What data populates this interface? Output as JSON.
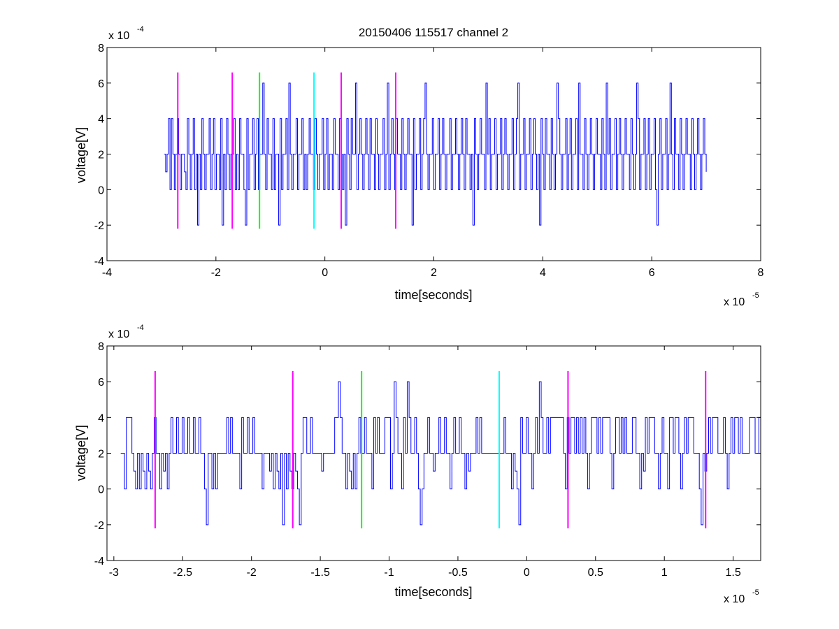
{
  "chart_data": [
    {
      "type": "line",
      "title": "20150406 115517 channel 2",
      "xlabel": "time[seconds]",
      "ylabel": "voltage[V]",
      "x_exponent_label": "x 10",
      "x_exponent_power": "-5",
      "y_exponent_label": "x 10",
      "y_exponent_power": "-4",
      "xlim": [
        -4,
        8
      ],
      "ylim": [
        -4,
        8
      ],
      "xticks": [
        -4,
        -2,
        0,
        2,
        4,
        6,
        8
      ],
      "xtick_labels": [
        "-4",
        "-2",
        "0",
        "2",
        "4",
        "6",
        "8"
      ],
      "yticks": [
        -4,
        -2,
        0,
        2,
        4,
        6,
        8
      ],
      "ytick_labels": [
        "-4",
        "-2",
        "0",
        "2",
        "4",
        "6",
        "8"
      ],
      "grid": false,
      "signal": {
        "color": "#0000ff",
        "x_start": -2.95,
        "x_end": 7.0,
        "values": [
          2,
          1,
          2,
          4,
          0,
          4,
          2,
          0,
          2,
          4,
          2,
          0,
          2,
          2,
          1,
          0,
          4,
          2,
          0,
          2,
          4,
          0,
          2,
          -2,
          2,
          0,
          4,
          2,
          0,
          2,
          2,
          4,
          0,
          2,
          4,
          0,
          2,
          2,
          0,
          4,
          -2,
          2,
          0,
          4,
          2,
          0,
          2,
          2,
          4,
          0,
          2,
          0,
          4,
          2,
          2,
          0,
          -2,
          4,
          0,
          2,
          2,
          4,
          0,
          2,
          4,
          0,
          2,
          2,
          6,
          2,
          0,
          4,
          2,
          2,
          0,
          4,
          0,
          2,
          2,
          -2,
          4,
          0,
          2,
          2,
          4,
          0,
          6,
          2,
          0,
          2,
          2,
          4,
          0,
          2,
          2,
          4,
          0,
          2,
          0,
          2,
          4,
          2,
          2,
          0,
          4,
          2,
          0,
          2,
          2,
          4,
          0,
          2,
          4,
          0,
          2,
          2,
          0,
          4,
          2,
          2,
          0,
          4,
          2,
          0,
          2,
          -2,
          4,
          2,
          0,
          4,
          2,
          2,
          6,
          0,
          2,
          4,
          2,
          0,
          2,
          4,
          2,
          0,
          4,
          2,
          2,
          0,
          4,
          2,
          0,
          2,
          2,
          4,
          0,
          2,
          6,
          0,
          2,
          4,
          2,
          0,
          4,
          2,
          2,
          0,
          4,
          2,
          0,
          2,
          4,
          2,
          2,
          -2,
          4,
          0,
          2,
          2,
          4,
          0,
          2,
          4,
          6,
          2,
          0,
          2,
          2,
          4,
          0,
          2,
          2,
          4,
          0,
          2,
          4,
          2,
          0,
          2,
          2,
          4,
          0,
          2,
          2,
          4,
          2,
          0,
          2,
          4,
          2,
          0,
          4,
          2,
          2,
          0,
          2,
          -2,
          4,
          2,
          0,
          2,
          4,
          2,
          2,
          0,
          6,
          2,
          4,
          0,
          2,
          2,
          4,
          0,
          2,
          2,
          4,
          0,
          2,
          4,
          2,
          0,
          2,
          2,
          4,
          0,
          2,
          4,
          6,
          0,
          2,
          2,
          4,
          0,
          2,
          2,
          4,
          0,
          2,
          4,
          2,
          0,
          2,
          -2,
          4,
          2,
          0,
          4,
          2,
          2,
          0,
          4,
          2,
          0,
          2,
          6,
          4,
          2,
          0,
          2,
          2,
          4,
          0,
          2,
          4,
          0,
          2,
          2,
          4,
          0,
          6,
          2,
          2,
          0,
          4,
          2,
          0,
          2,
          4,
          2,
          0,
          2,
          4,
          2,
          2,
          0,
          4,
          2,
          0,
          6,
          2,
          4,
          0,
          2,
          2,
          4,
          0,
          2,
          4,
          2,
          0,
          2,
          4,
          2,
          2,
          0,
          4,
          2,
          0,
          2,
          6,
          4,
          0,
          2,
          2,
          4,
          0,
          2,
          4,
          0,
          2,
          2,
          4,
          0,
          -2,
          2,
          4,
          0,
          2,
          2,
          4,
          0,
          2,
          6,
          2,
          0,
          4,
          2,
          2,
          0,
          4,
          2,
          0,
          2,
          4,
          2,
          2,
          0,
          4,
          2,
          0,
          2,
          4,
          2,
          0,
          2,
          4,
          2,
          1
        ]
      },
      "markers": [
        {
          "x": -2.7,
          "color": "#ff00ff",
          "y_from": -2.2,
          "y_to": 6.6
        },
        {
          "x": -1.7,
          "color": "#ff00ff",
          "y_from": -2.2,
          "y_to": 6.6
        },
        {
          "x": -1.2,
          "color": "#00ff00",
          "y_from": -2.2,
          "y_to": 6.6
        },
        {
          "x": -0.2,
          "color": "#00ffff",
          "y_from": -2.2,
          "y_to": 6.6
        },
        {
          "x": 0.3,
          "color": "#ff00ff",
          "y_from": -2.2,
          "y_to": 6.6
        },
        {
          "x": 1.3,
          "color": "#ff00ff",
          "y_from": -2.2,
          "y_to": 6.6
        }
      ]
    },
    {
      "type": "line",
      "title": "",
      "xlabel": "time[seconds]",
      "ylabel": "voltage[V]",
      "x_exponent_label": "x 10",
      "x_exponent_power": "-5",
      "y_exponent_label": "x 10",
      "y_exponent_power": "-4",
      "xlim": [
        -3.05,
        1.7
      ],
      "ylim": [
        -4,
        8
      ],
      "xticks": [
        -3,
        -2.5,
        -2,
        -1.5,
        -1,
        -0.5,
        0,
        0.5,
        1,
        1.5
      ],
      "xtick_labels": [
        "-3",
        "-2.5",
        "-2",
        "-1.5",
        "-1",
        "-0.5",
        "0",
        "0.5",
        "1",
        "1.5"
      ],
      "yticks": [
        -4,
        -2,
        0,
        2,
        4,
        6,
        8
      ],
      "ytick_labels": [
        "-4",
        "-2",
        "0",
        "2",
        "4",
        "6",
        "8"
      ],
      "grid": false,
      "signal": {
        "color": "#0000ff",
        "x_start": -2.95,
        "x_end": 1.7,
        "values": [
          2,
          2,
          0,
          4,
          4,
          4,
          2,
          1,
          0,
          2,
          0,
          2,
          1,
          0,
          2,
          1,
          0,
          2,
          4,
          2,
          2,
          0,
          2,
          1,
          2,
          0,
          2,
          4,
          2,
          2,
          4,
          2,
          2,
          4,
          2,
          2,
          4,
          2,
          2,
          4,
          2,
          2,
          4,
          2,
          2,
          0,
          -2,
          2,
          2,
          0,
          2,
          0,
          2,
          2,
          2,
          2,
          2,
          4,
          2,
          4,
          2,
          2,
          2,
          2,
          0,
          4,
          2,
          2,
          4,
          2,
          2,
          4,
          2,
          2,
          2,
          2,
          0,
          2,
          2,
          2,
          1,
          2,
          0,
          2,
          1,
          0,
          2,
          -2,
          2,
          0,
          2,
          1,
          0,
          2,
          1,
          0,
          -2,
          2,
          4,
          4,
          2,
          2,
          4,
          2,
          2,
          2,
          2,
          2,
          1,
          2,
          2,
          2,
          2,
          2,
          2,
          4,
          4,
          6,
          4,
          2,
          2,
          0,
          2,
          1,
          0,
          2,
          0,
          2,
          4,
          2,
          2,
          4,
          2,
          2,
          2,
          0,
          4,
          2,
          4,
          2,
          2,
          2,
          4,
          4,
          4,
          0,
          2,
          6,
          4,
          2,
          2,
          0,
          4,
          2,
          6,
          4,
          2,
          2,
          4,
          2,
          0,
          -2,
          0,
          2,
          2,
          4,
          2,
          2,
          1,
          2,
          2,
          4,
          2,
          2,
          4,
          2,
          2,
          0,
          2,
          4,
          2,
          2,
          4,
          2,
          2,
          0,
          2,
          1,
          2,
          2,
          2,
          4,
          2,
          4,
          2,
          2,
          2,
          2,
          2,
          2,
          2,
          2,
          2,
          2,
          2,
          2,
          4,
          2,
          2,
          2,
          0,
          2,
          1,
          0,
          -2,
          4,
          2,
          2,
          4,
          2,
          2,
          0,
          2,
          4,
          2,
          6,
          4,
          2,
          2,
          4,
          2,
          4,
          4,
          4,
          4,
          4,
          4,
          4,
          2,
          0,
          4,
          2,
          4,
          4,
          2,
          4,
          2,
          4,
          2,
          4,
          2,
          0,
          2,
          4,
          4,
          4,
          2,
          4,
          2,
          4,
          4,
          4,
          4,
          2,
          0,
          2,
          4,
          4,
          2,
          4,
          2,
          4,
          2,
          2,
          2,
          4,
          4,
          2,
          2,
          0,
          2,
          1,
          4,
          2,
          4,
          4,
          4,
          2,
          2,
          0,
          2,
          4,
          2,
          2,
          0,
          4,
          4,
          2,
          4,
          4,
          2,
          0,
          2,
          4,
          2,
          4,
          4,
          4,
          2,
          2,
          2,
          0,
          -2,
          2,
          1,
          2,
          4,
          2,
          4,
          4,
          4,
          2,
          2,
          2,
          4,
          2,
          0,
          2,
          4,
          2,
          4,
          4,
          2,
          4,
          2,
          2,
          2,
          2,
          4,
          4,
          4,
          2,
          2,
          4,
          4
        ]
      },
      "markers": [
        {
          "x": -2.7,
          "color": "#ff00ff",
          "y_from": -2.2,
          "y_to": 6.6
        },
        {
          "x": -1.7,
          "color": "#ff00ff",
          "y_from": -2.2,
          "y_to": 6.6
        },
        {
          "x": -1.2,
          "color": "#00ff00",
          "y_from": -2.2,
          "y_to": 6.6
        },
        {
          "x": -0.2,
          "color": "#00ffff",
          "y_from": -2.2,
          "y_to": 6.6
        },
        {
          "x": 0.3,
          "color": "#ff00ff",
          "y_from": -2.2,
          "y_to": 6.6
        },
        {
          "x": 1.3,
          "color": "#ff00ff",
          "y_from": -2.2,
          "y_to": 6.6
        }
      ]
    }
  ]
}
